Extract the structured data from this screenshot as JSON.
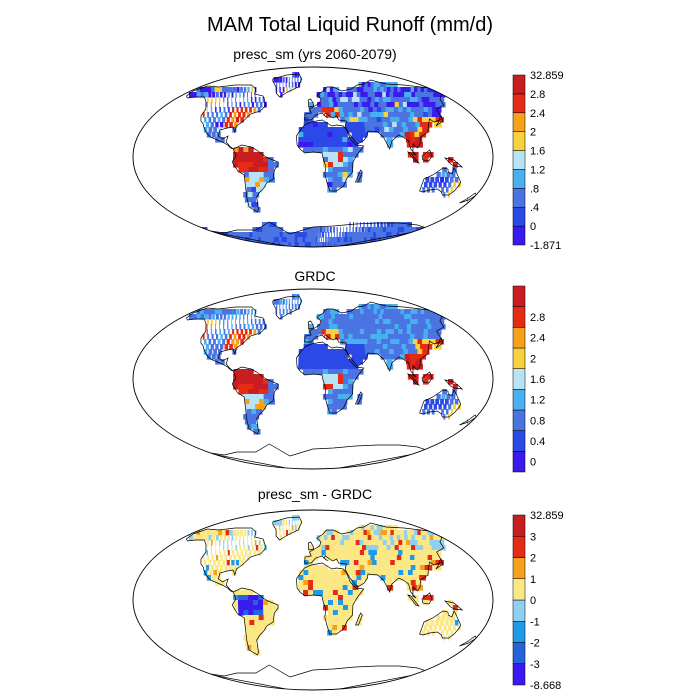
{
  "title": "MAM Total Liquid Runoff (mm/d)",
  "colors": {
    "ocean": "#ffffff",
    "outline": "#000000"
  },
  "panels": [
    {
      "title": "presc_sm (yrs 2060-2079)",
      "field": "presc_sm",
      "colorbar": {
        "colors": [
          "#3a1aee",
          "#2b49e6",
          "#4a74e2",
          "#48b0ee",
          "#b8e2f6",
          "#f8d23c",
          "#f6a11a",
          "#e62b15",
          "#c81e22"
        ],
        "labels": [
          "-1.871",
          "0",
          ".4",
          ".8",
          "1.2",
          "1.6",
          "2",
          "2.4",
          "2.8",
          "32.859"
        ]
      }
    },
    {
      "title": "GRDC",
      "field": "grdc",
      "colorbar": {
        "colors": [
          "#3a1aee",
          "#2b49e6",
          "#4a74e2",
          "#48b0ee",
          "#b8e2f6",
          "#f8d23c",
          "#f6a11a",
          "#e62b15",
          "#c81e22"
        ],
        "labels": [
          "0",
          "0.4",
          "0.8",
          "1.2",
          "1.6",
          "2",
          "2.4",
          "2.8"
        ]
      }
    },
    {
      "title": "presc_sm - GRDC",
      "field": "difference",
      "colorbar": {
        "colors": [
          "#3a1aee",
          "#2464dc",
          "#1e9be8",
          "#8fd0f0",
          "#fbe884",
          "#f6a11a",
          "#e62b15",
          "#c81e22"
        ],
        "labels": [
          "-8.668",
          "-3",
          "-2",
          "-1",
          "0",
          "1",
          "2",
          "3",
          "32.859"
        ]
      }
    }
  ]
}
